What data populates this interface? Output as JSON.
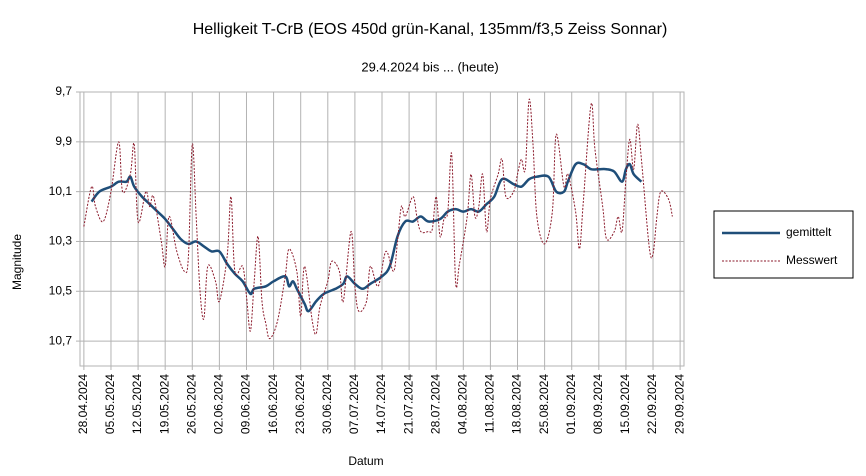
{
  "chart_data": {
    "type": "line",
    "title": "Helligkeit T-CrB (EOS 450d grün-Kanal, 135mm/f3,5 Zeiss Sonnar)",
    "subtitle": "29.4.2024 bis ... (heute)",
    "x_label": "Datum",
    "y_label": "Magnitude",
    "xlim": [
      "27.04.2024",
      "30.09.2024"
    ],
    "xticks": [
      "28.04.2024",
      "05.05.2024",
      "12.05.2024",
      "19.05.2024",
      "26.05.2024",
      "02.06.2024",
      "09.06.2024",
      "16.06.2024",
      "23.06.2024",
      "30.06.2024",
      "07.07.2024",
      "14.07.2024",
      "21.07.2024",
      "28.07.2024",
      "04.08.2024",
      "11.08.2024",
      "18.08.2024",
      "25.08.2024",
      "01.09.2024",
      "08.09.2024",
      "15.09.2024",
      "22.09.2024",
      "29.09.2024"
    ],
    "ylim": [
      9.7,
      10.8
    ],
    "y_reversed": true,
    "yticks": [
      {
        "value": 9.7,
        "label": "9,7"
      },
      {
        "value": 9.9,
        "label": "9,9"
      },
      {
        "value": 10.1,
        "label": "10,1"
      },
      {
        "value": 10.3,
        "label": "10,3"
      },
      {
        "value": 10.5,
        "label": "10,5"
      },
      {
        "value": 10.7,
        "label": "10,7"
      }
    ],
    "grid": true,
    "legend": "right",
    "series": [
      {
        "name": "gemittelt",
        "color": "#1f4e79",
        "style": "solid",
        "x": [
          "30.04.2024",
          "02.05.2024",
          "05.05.2024",
          "07.05.2024",
          "09.05.2024",
          "10.05.2024",
          "11.05.2024",
          "13.05.2024",
          "15.05.2024",
          "17.05.2024",
          "19.05.2024",
          "21.05.2024",
          "23.05.2024",
          "25.05.2024",
          "27.05.2024",
          "29.05.2024",
          "31.05.2024",
          "02.06.2024",
          "04.06.2024",
          "06.06.2024",
          "08.06.2024",
          "10.06.2024",
          "11.06.2024",
          "14.06.2024",
          "16.06.2024",
          "19.06.2024",
          "20.06.2024",
          "21.06.2024",
          "22.06.2024",
          "24.06.2024",
          "25.06.2024",
          "27.06.2024",
          "29.06.2024",
          "02.07.2024",
          "04.07.2024",
          "05.07.2024",
          "07.07.2024",
          "09.07.2024",
          "11.07.2024",
          "14.07.2024",
          "16.07.2024",
          "18.07.2024",
          "20.07.2024",
          "22.07.2024",
          "24.07.2024",
          "26.07.2024",
          "29.07.2024",
          "31.07.2024",
          "02.08.2024",
          "04.08.2024",
          "06.08.2024",
          "08.08.2024",
          "10.08.2024",
          "12.08.2024",
          "14.08.2024",
          "17.08.2024",
          "19.08.2024",
          "21.08.2024",
          "23.08.2024",
          "26.08.2024",
          "28.08.2024",
          "30.08.2024",
          "31.08.2024",
          "02.09.2024",
          "04.09.2024",
          "06.09.2024",
          "08.09.2024",
          "10.09.2024",
          "12.09.2024",
          "14.09.2024",
          "15.09.2024",
          "16.09.2024",
          "17.09.2024",
          "19.09.2024"
        ],
        "values": [
          10.14,
          10.1,
          10.08,
          10.06,
          10.06,
          10.04,
          10.08,
          10.12,
          10.15,
          10.18,
          10.21,
          10.25,
          10.29,
          10.31,
          10.3,
          10.32,
          10.34,
          10.34,
          10.39,
          10.43,
          10.46,
          10.51,
          10.49,
          10.48,
          10.46,
          10.44,
          10.48,
          10.46,
          10.49,
          10.55,
          10.58,
          10.54,
          10.51,
          10.49,
          10.47,
          10.44,
          10.47,
          10.49,
          10.47,
          10.44,
          10.4,
          10.28,
          10.22,
          10.22,
          10.2,
          10.22,
          10.21,
          10.18,
          10.17,
          10.18,
          10.17,
          10.18,
          10.15,
          10.12,
          10.05,
          10.07,
          10.08,
          10.05,
          10.04,
          10.04,
          10.1,
          10.1,
          10.06,
          9.99,
          9.99,
          10.01,
          10.01,
          10.01,
          10.02,
          10.06,
          10.01,
          9.99,
          10.03,
          10.06
        ]
      },
      {
        "name": "Messwert",
        "color": "#8b1a2b",
        "style": "dashed",
        "x": [
          "28.04.2024",
          "30.04.2024",
          "01.05.2024",
          "03.05.2024",
          "05.05.2024",
          "07.05.2024",
          "08.05.2024",
          "10.05.2024",
          "11.05.2024",
          "12.05.2024",
          "14.05.2024",
          "15.05.2024",
          "16.05.2024",
          "18.05.2024",
          "19.05.2024",
          "20.05.2024",
          "22.05.2024",
          "24.05.2024",
          "25.05.2024",
          "26.05.2024",
          "27.05.2024",
          "28.05.2024",
          "29.05.2024",
          "30.05.2024",
          "01.06.2024",
          "02.06.2024",
          "04.06.2024",
          "05.06.2024",
          "06.06.2024",
          "08.06.2024",
          "09.06.2024",
          "10.06.2024",
          "11.06.2024",
          "12.06.2024",
          "13.06.2024",
          "14.06.2024",
          "15.06.2024",
          "17.06.2024",
          "19.06.2024",
          "20.06.2024",
          "22.06.2024",
          "23.06.2024",
          "24.06.2024",
          "26.06.2024",
          "27.06.2024",
          "28.06.2024",
          "30.06.2024",
          "01.07.2024",
          "03.07.2024",
          "04.07.2024",
          "06.07.2024",
          "07.07.2024",
          "08.07.2024",
          "10.07.2024",
          "11.07.2024",
          "13.07.2024",
          "15.07.2024",
          "17.07.2024",
          "18.07.2024",
          "19.07.2024",
          "20.07.2024",
          "22.07.2024",
          "23.07.2024",
          "24.07.2024",
          "26.07.2024",
          "27.07.2024",
          "28.07.2024",
          "29.07.2024",
          "30.07.2024",
          "31.07.2024",
          "01.08.2024",
          "02.08.2024",
          "03.08.2024",
          "05.08.2024",
          "06.08.2024",
          "07.08.2024",
          "08.08.2024",
          "09.08.2024",
          "10.08.2024",
          "11.08.2024",
          "13.08.2024",
          "14.08.2024",
          "15.08.2024",
          "17.08.2024",
          "18.08.2024",
          "19.08.2024",
          "20.08.2024",
          "21.08.2024",
          "22.08.2024",
          "23.08.2024",
          "25.08.2024",
          "27.08.2024",
          "28.08.2024",
          "30.08.2024",
          "31.08.2024",
          "02.09.2024",
          "03.09.2024",
          "04.09.2024",
          "06.09.2024",
          "07.09.2024",
          "09.09.2024",
          "10.09.2024",
          "12.09.2024",
          "13.09.2024",
          "14.09.2024",
          "15.09.2024",
          "16.09.2024",
          "17.09.2024",
          "18.09.2024",
          "19.09.2024",
          "21.09.2024",
          "22.09.2024",
          "23.09.2024",
          "24.09.2024",
          "26.09.2024",
          "27.09.2024"
        ],
        "values": [
          10.24,
          10.08,
          10.16,
          10.22,
          10.1,
          9.9,
          10.1,
          10.03,
          9.91,
          10.22,
          10.1,
          10.16,
          10.12,
          10.3,
          10.4,
          10.2,
          10.34,
          10.42,
          10.36,
          9.91,
          10.2,
          10.5,
          10.61,
          10.4,
          10.46,
          10.54,
          10.36,
          10.12,
          10.42,
          10.4,
          10.52,
          10.66,
          10.46,
          10.28,
          10.54,
          10.63,
          10.69,
          10.62,
          10.44,
          10.33,
          10.42,
          10.6,
          10.4,
          10.62,
          10.67,
          10.56,
          10.46,
          10.38,
          10.42,
          10.54,
          10.26,
          10.48,
          10.58,
          10.54,
          10.4,
          10.48,
          10.34,
          10.42,
          10.3,
          10.16,
          10.2,
          10.12,
          10.2,
          10.26,
          10.26,
          10.25,
          10.12,
          10.28,
          10.21,
          10.18,
          9.95,
          10.46,
          10.39,
          10.2,
          10.03,
          10.2,
          10.16,
          10.03,
          10.26,
          10.13,
          10.03,
          9.97,
          10.12,
          10.1,
          10.03,
          9.97,
          10.01,
          9.73,
          9.91,
          10.2,
          10.31,
          10.18,
          9.87,
          10.08,
          10.03,
          10.18,
          10.33,
          10.14,
          9.75,
          9.93,
          10.16,
          10.29,
          10.26,
          10.2,
          10.26,
          10.05,
          9.89,
          10.01,
          9.83,
          9.97,
          10.32,
          10.35,
          10.2,
          10.1,
          10.13,
          10.2
        ]
      }
    ]
  }
}
